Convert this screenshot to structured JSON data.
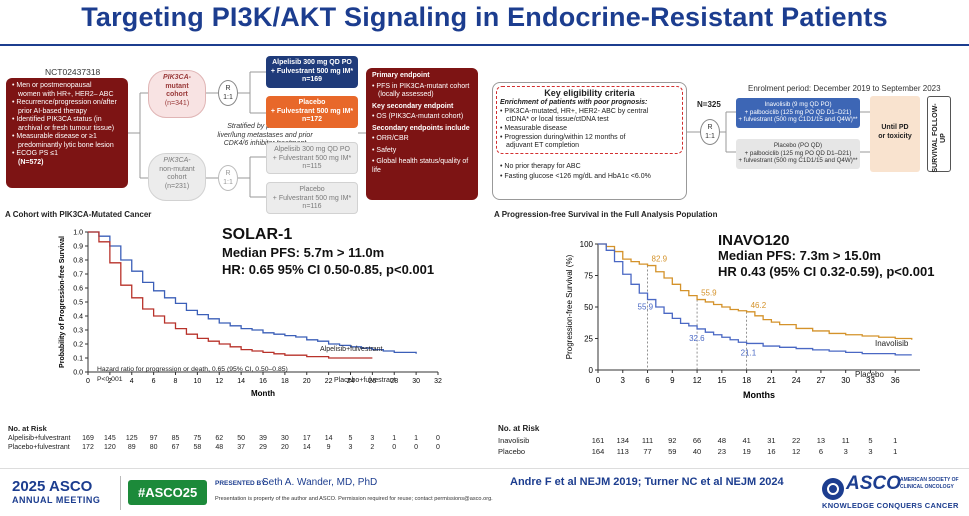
{
  "title": "Targeting PI3K/AKT Signaling in Endocrine-Resistant Patients",
  "solar": {
    "trial_id": "NCT02437318",
    "eligibility": [
      "• Men or postmenopausal",
      "women with HR+, HER2– ABC",
      "• Recurrence/progression on/after",
      "prior AI-based therapy",
      "• Identified PIK3CA status (in",
      "archival or fresh tumour tissue)",
      "• Measurable disease or ≥1",
      "predominantly lytic bone lesion",
      "• ECOG PS ≤1",
      "(N=572)"
    ],
    "mutant_cohort": [
      "PIK3CA-",
      "mutant",
      "cohort",
      "(n=341)"
    ],
    "nonmutant_cohort": [
      "PIK3CA-",
      "non-mutant",
      "cohort",
      "(n=231)"
    ],
    "rand": [
      "R",
      "1:1"
    ],
    "stratified": [
      "Stratified by presence of",
      "liver/lung metastases and prior",
      "CDK4/6 inhibitor treatment"
    ],
    "arm1": [
      "Alpelisib 300 mg QD PO",
      "+ Fulvestrant 500 mg IM*",
      "n=169"
    ],
    "arm2": [
      "Placebo",
      "+ Fulvestrant 500 mg IM*",
      "n=172"
    ],
    "arm3": [
      "Alpelisib 300 mg QD PO",
      "+ Fulvestrant 500 mg IM*",
      "n=115"
    ],
    "arm4": [
      "Placebo",
      "+ Fulvestrant 500 mg IM*",
      "n=116"
    ],
    "endpoints": [
      "Primary endpoint",
      "• PFS in PIK3CA-mutant cohort",
      "(locally assessed)",
      "Key secondary endpoint",
      "• OS (PIK3CA-mutant cohort)",
      "Secondary endpoints include",
      "• ORR/CBR",
      "• Safety",
      "• Global health status/quality of life"
    ]
  },
  "inavo": {
    "criteria_title": "Key eligibility criteria",
    "criteria": [
      "Enrichment of patients with poor prognosis:",
      "• PIK3CA-mutated, HR+, HER2- ABC by central",
      "ctDNA* or local tissue/ctDNA test",
      "• Measurable disease",
      "• Progression during/within 12 months of",
      "adjuvant ET completion",
      "• No prior therapy for ABC",
      "• Fasting glucose <126 mg/dL and HbA1c <6.0%"
    ],
    "n": "N=325",
    "rand": [
      "R",
      "1:1"
    ],
    "enrolment": "Enrolment period: December 2019 to September 2023",
    "arm1": [
      "Inavolisib (9 mg QD PO)",
      "+ palbociclib (125 mg PO QD D1–D21)",
      "+ fulvestrant (500 mg C1D1/15 and Q4W)**"
    ],
    "arm2": [
      "Placebo (PO QD)",
      "+ palbociclib (125 mg PO QD D1–D21)",
      "+ fulvestrant (500 mg C1D1/15 and Q4W)**"
    ],
    "until": [
      "Until PD",
      "or toxicity"
    ],
    "survival": "SURVIVAL FOLLOW-UP"
  },
  "chart_data": [
    {
      "type": "line",
      "panel_label": "A  Cohort with PIK3CA-Mutated Cancer",
      "study": "SOLAR-1",
      "median": "Median PFS: 5.7m > 11.0m",
      "hr": "HR: 0.65 95% CI 0.50-0.85, p<0.001",
      "ylabel": "Probability of Progression-free Survival",
      "xlabel": "Month",
      "xlim": [
        0,
        32
      ],
      "ylim": [
        0,
        1.0
      ],
      "x_ticks": [
        "0",
        "2",
        "4",
        "6",
        "8",
        "10",
        "12",
        "14",
        "16",
        "18",
        "20",
        "22",
        "24",
        "26",
        "28",
        "30",
        "32"
      ],
      "y_ticks": [
        "0.0",
        "0.1",
        "0.2",
        "0.3",
        "0.4",
        "0.5",
        "0.6",
        "0.7",
        "0.8",
        "0.9",
        "1.0"
      ],
      "series": [
        {
          "name": "Alpelisib+fulvestrant",
          "color": "#3b5fb8",
          "x": [
            0,
            1,
            2,
            3,
            4,
            5,
            6,
            7,
            8,
            9,
            10,
            11,
            12,
            13,
            14,
            15,
            16,
            17,
            18,
            19,
            20,
            21,
            22,
            23,
            24,
            25,
            26,
            27,
            28,
            29,
            30
          ],
          "y": [
            1.0,
            0.97,
            0.9,
            0.8,
            0.72,
            0.64,
            0.58,
            0.53,
            0.49,
            0.44,
            0.41,
            0.38,
            0.35,
            0.33,
            0.31,
            0.3,
            0.28,
            0.27,
            0.26,
            0.25,
            0.23,
            0.22,
            0.2,
            0.19,
            0.18,
            0.17,
            0.16,
            0.15,
            0.14,
            0.14,
            0.13
          ]
        },
        {
          "name": "Placebo+fulvestrant",
          "color": "#b8322a",
          "x": [
            0,
            1,
            2,
            3,
            4,
            5,
            6,
            7,
            8,
            9,
            10,
            11,
            12,
            13,
            14,
            15,
            16,
            17,
            18,
            19,
            20,
            21,
            22,
            23,
            24,
            25,
            26
          ],
          "y": [
            1.0,
            0.93,
            0.78,
            0.62,
            0.53,
            0.45,
            0.4,
            0.35,
            0.31,
            0.27,
            0.24,
            0.22,
            0.2,
            0.18,
            0.16,
            0.15,
            0.14,
            0.13,
            0.12,
            0.12,
            0.11,
            0.11,
            0.1,
            0.1,
            0.1,
            0.1,
            0.1
          ]
        }
      ],
      "hr_note": [
        "Hazard ratio for progression or death, 0.65 (95% CI, 0.50–0.85)",
        "P<0.001"
      ],
      "at_risk_title": "No. at Risk",
      "at_risk": [
        {
          "name": "Alpelisib+fulvestrant",
          "values": [
            "169",
            "145",
            "125",
            "97",
            "85",
            "75",
            "62",
            "50",
            "39",
            "30",
            "17",
            "14",
            "5",
            "3",
            "1",
            "1",
            "0"
          ]
        },
        {
          "name": "Placebo+fulvestrant",
          "values": [
            "172",
            "120",
            "89",
            "80",
            "67",
            "58",
            "48",
            "37",
            "29",
            "20",
            "14",
            "9",
            "3",
            "2",
            "0",
            "0",
            "0"
          ]
        }
      ]
    },
    {
      "type": "line",
      "panel_label": "A  Progression-free Survival in the Full Analysis Population",
      "study": "INAVO120",
      "median": "Median PFS: 7.3m > 15.0m",
      "hr": "HR 0.43 (95% CI 0.32-0.59), p<0.001",
      "ylabel": "Progression-free Survival (%)",
      "xlabel": "Months",
      "xlim": [
        0,
        39
      ],
      "ylim": [
        0,
        100
      ],
      "x_ticks": [
        "0",
        "3",
        "6",
        "9",
        "12",
        "15",
        "18",
        "21",
        "24",
        "27",
        "30",
        "33",
        "36"
      ],
      "y_ticks": [
        "0",
        "25",
        "50",
        "75",
        "100"
      ],
      "series": [
        {
          "name": "Inavolisib",
          "color": "#d4922a",
          "x": [
            0,
            1,
            2,
            3,
            4,
            5,
            6,
            7,
            8,
            9,
            10,
            11,
            12,
            13,
            14,
            15,
            16,
            17,
            18,
            19,
            20,
            21,
            22,
            24,
            26,
            28,
            30,
            32,
            34,
            36,
            38
          ],
          "y": [
            100,
            98,
            94,
            88,
            86,
            84,
            82.9,
            78,
            73,
            68,
            63,
            59,
            55.9,
            54,
            52,
            50,
            48,
            47,
            46.2,
            43,
            40,
            38,
            36,
            33,
            31,
            29,
            28,
            27,
            26,
            25,
            24
          ]
        },
        {
          "name": "Placebo",
          "color": "#4a68c4",
          "x": [
            0,
            1,
            2,
            3,
            4,
            5,
            6,
            7,
            8,
            9,
            10,
            11,
            12,
            13,
            14,
            15,
            16,
            17,
            18,
            20,
            22,
            24,
            26,
            28,
            30,
            32,
            34,
            36,
            38
          ],
          "y": [
            100,
            95,
            86,
            76,
            68,
            61,
            55.9,
            50,
            45,
            41,
            37,
            35,
            32.6,
            30,
            28,
            26,
            24,
            22,
            21.1,
            19,
            18,
            17,
            16,
            15,
            14,
            13,
            13,
            12,
            12
          ]
        }
      ],
      "annotations": [
        "82.9",
        "55.9",
        "46.2",
        "55.9",
        "32.6",
        "21.1"
      ],
      "at_risk_title": "No. at Risk",
      "at_risk": [
        {
          "name": "Inavolisib",
          "values": [
            "161",
            "134",
            "111",
            "92",
            "66",
            "48",
            "41",
            "31",
            "22",
            "13",
            "11",
            "5",
            "1"
          ]
        },
        {
          "name": "Placebo",
          "values": [
            "164",
            "113",
            "77",
            "59",
            "40",
            "23",
            "19",
            "16",
            "12",
            "6",
            "3",
            "3",
            "1"
          ]
        }
      ]
    }
  ],
  "footer": {
    "year": "2025",
    "meeting": "ASCO",
    "annual": "ANNUAL MEETING",
    "hashtag": "#ASCO25",
    "presented_by": "PRESENTED BY:",
    "presenter": "Seth A. Wander, MD, PhD",
    "disclaimer": "Presentation is property of the author and ASCO. Permission required for reuse; contact permissions@asco.org.",
    "citation": "Andre F et al NEJM 2019; Turner NC et al NEJM 2024",
    "asco_logo": "ASCO",
    "asco_sub1": "AMERICAN SOCIETY OF",
    "asco_sub2": "CLINICAL ONCOLOGY",
    "tagline": "KNOWLEDGE CONQUERS CANCER"
  }
}
